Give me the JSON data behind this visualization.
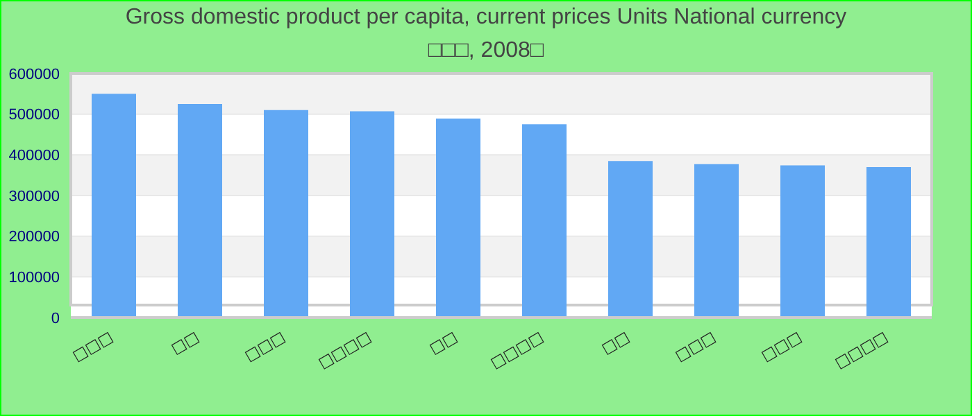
{
  "chart_data": {
    "type": "bar",
    "title": "Gross domestic product per capita, current prices Units National currency",
    "subtitle": "□□□, 2008□",
    "categories": [
      "□□□",
      "□□",
      "□□□",
      "□□□□",
      "□□",
      "□□□□",
      "□□",
      "□□□",
      "□□□",
      "□□□□"
    ],
    "values": [
      550000,
      525000,
      510000,
      507000,
      489000,
      475000,
      385000,
      377000,
      374000,
      370000
    ],
    "color": "#61a8f4",
    "ylim": [
      0,
      600000
    ],
    "yticks": [
      0,
      100000,
      200000,
      300000,
      400000,
      500000,
      600000
    ],
    "grid": "y"
  }
}
